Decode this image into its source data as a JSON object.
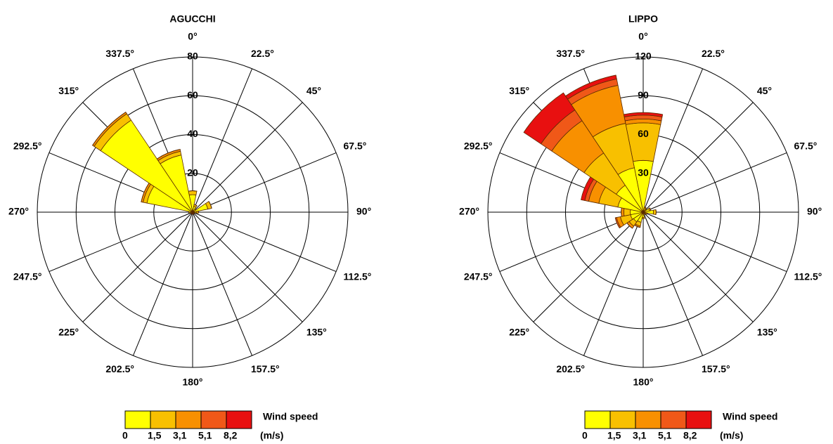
{
  "chart_data": [
    {
      "type": "polar_bar",
      "title": "AGUCCHI",
      "categories": [
        "0°",
        "22.5°",
        "45°",
        "67.5°",
        "90°",
        "112.5°",
        "135°",
        "157.5°",
        "180°",
        "202.5°",
        "225°",
        "247.5°",
        "270°",
        "292.5°",
        "315°",
        "337.5°"
      ],
      "rlim": [
        0,
        80
      ],
      "rticks": [
        20,
        40,
        60,
        80
      ],
      "series": [
        {
          "color": "#ffff00",
          "values": [
            9,
            3,
            2,
            8,
            2,
            1,
            1,
            1,
            1,
            1,
            1,
            1,
            2,
            24,
            57,
            30
          ]
        },
        {
          "color": "#f8c000",
          "values": [
            2,
            1,
            0,
            2,
            1,
            0,
            0,
            0,
            0,
            0,
            0,
            0,
            0,
            2,
            4,
            2
          ]
        },
        {
          "color": "#f89000",
          "values": [
            0,
            0,
            0,
            0,
            0,
            0,
            0,
            0,
            0,
            0,
            0,
            0,
            0,
            1,
            1,
            1
          ]
        },
        {
          "color": "#f05818",
          "values": [
            0,
            0,
            0,
            0,
            0,
            0,
            0,
            0,
            0,
            0,
            0,
            0,
            0,
            0,
            0,
            0
          ]
        },
        {
          "color": "#e81010",
          "values": [
            0,
            0,
            0,
            0,
            0,
            0,
            0,
            0,
            0,
            0,
            0,
            0,
            0,
            0,
            0,
            0
          ]
        }
      ],
      "legend": {
        "title": "Wind speed",
        "unit": "(m/s)",
        "bins": [
          0,
          {
            "value": 1.5,
            "label": "1,5"
          },
          {
            "value": 3.1,
            "label": "3,1"
          },
          {
            "value": 5.1,
            "label": "5,1"
          },
          {
            "value": 8.2,
            "label": "8,2"
          }
        ]
      }
    },
    {
      "type": "polar_bar",
      "title": "LIPPO",
      "categories": [
        "0°",
        "22.5°",
        "45°",
        "67.5°",
        "90°",
        "112.5°",
        "135°",
        "157.5°",
        "180°",
        "202.5°",
        "225°",
        "247.5°",
        "270°",
        "292.5°",
        "315°",
        "337.5°"
      ],
      "rlim": [
        0,
        120
      ],
      "rticks": [
        30,
        60,
        90,
        120
      ],
      "series": [
        {
          "color": "#ffff00",
          "values": [
            40,
            3,
            2,
            5,
            8,
            2,
            1,
            2,
            4,
            8,
            9,
            10,
            10,
            20,
            25,
            35
          ]
        },
        {
          "color": "#f8c000",
          "values": [
            29,
            1,
            1,
            1,
            2,
            1,
            0,
            0,
            1,
            3,
            4,
            8,
            5,
            15,
            30,
            35
          ]
        },
        {
          "color": "#f89000",
          "values": [
            3,
            0,
            0,
            0,
            0,
            0,
            0,
            0,
            0,
            1,
            2,
            3,
            2,
            8,
            30,
            30
          ]
        },
        {
          "color": "#f05818",
          "values": [
            3,
            0,
            0,
            0,
            0,
            0,
            0,
            0,
            0,
            0,
            0,
            1,
            0,
            3,
            10,
            5
          ]
        },
        {
          "color": "#e81010",
          "values": [
            2,
            0,
            0,
            0,
            0,
            0,
            0,
            0,
            0,
            0,
            0,
            0,
            0,
            3,
            16,
            3
          ]
        }
      ],
      "legend": {
        "title": "Wind speed",
        "unit": "(m/s)",
        "bins": [
          0,
          {
            "value": 1.5,
            "label": "1,5"
          },
          {
            "value": 3.1,
            "label": "3,1"
          },
          {
            "value": 5.1,
            "label": "5,1"
          },
          {
            "value": 8.2,
            "label": "8,2"
          }
        ]
      }
    }
  ]
}
